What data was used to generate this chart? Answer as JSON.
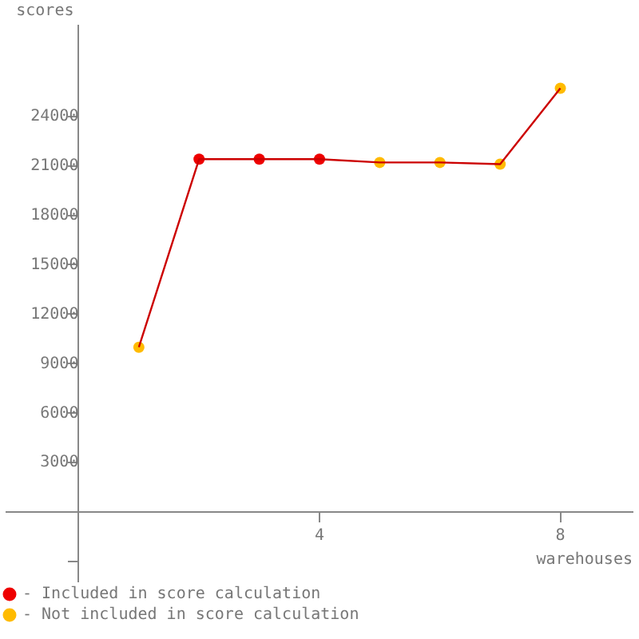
{
  "chart_data": {
    "type": "line",
    "xlabel": "warehouses",
    "ylabel": "scores",
    "x": [
      1,
      2,
      3,
      4,
      5,
      6,
      7,
      8
    ],
    "series": [
      {
        "color": "#cc0000",
        "values": [
          10000,
          21400,
          21400,
          21400,
          21200,
          21200,
          21100,
          25700
        ],
        "marker": "none"
      },
      {
        "type": "scatter",
        "name": "- Included in score calculation",
        "color": "#ee0000",
        "values": [
          null,
          21400,
          21400,
          21400,
          null,
          null,
          null,
          null
        ]
      },
      {
        "type": "scatter",
        "name": "- Not included in score calculation",
        "color": "#ffbb00",
        "values": [
          10000,
          null,
          null,
          null,
          21200,
          21200,
          21100,
          25700
        ]
      }
    ],
    "xlim": [
      -1.2,
      9.2
    ],
    "xticks": [
      4,
      8
    ],
    "ylim": [
      -4200,
      29500
    ],
    "yticks": [
      {
        "value": -3000,
        "label": null
      },
      3000,
      6000,
      9000,
      12000,
      15000,
      18000,
      21000,
      24000
    ],
    "grid": false,
    "legend": "bottom left",
    "marker": "circle"
  }
}
